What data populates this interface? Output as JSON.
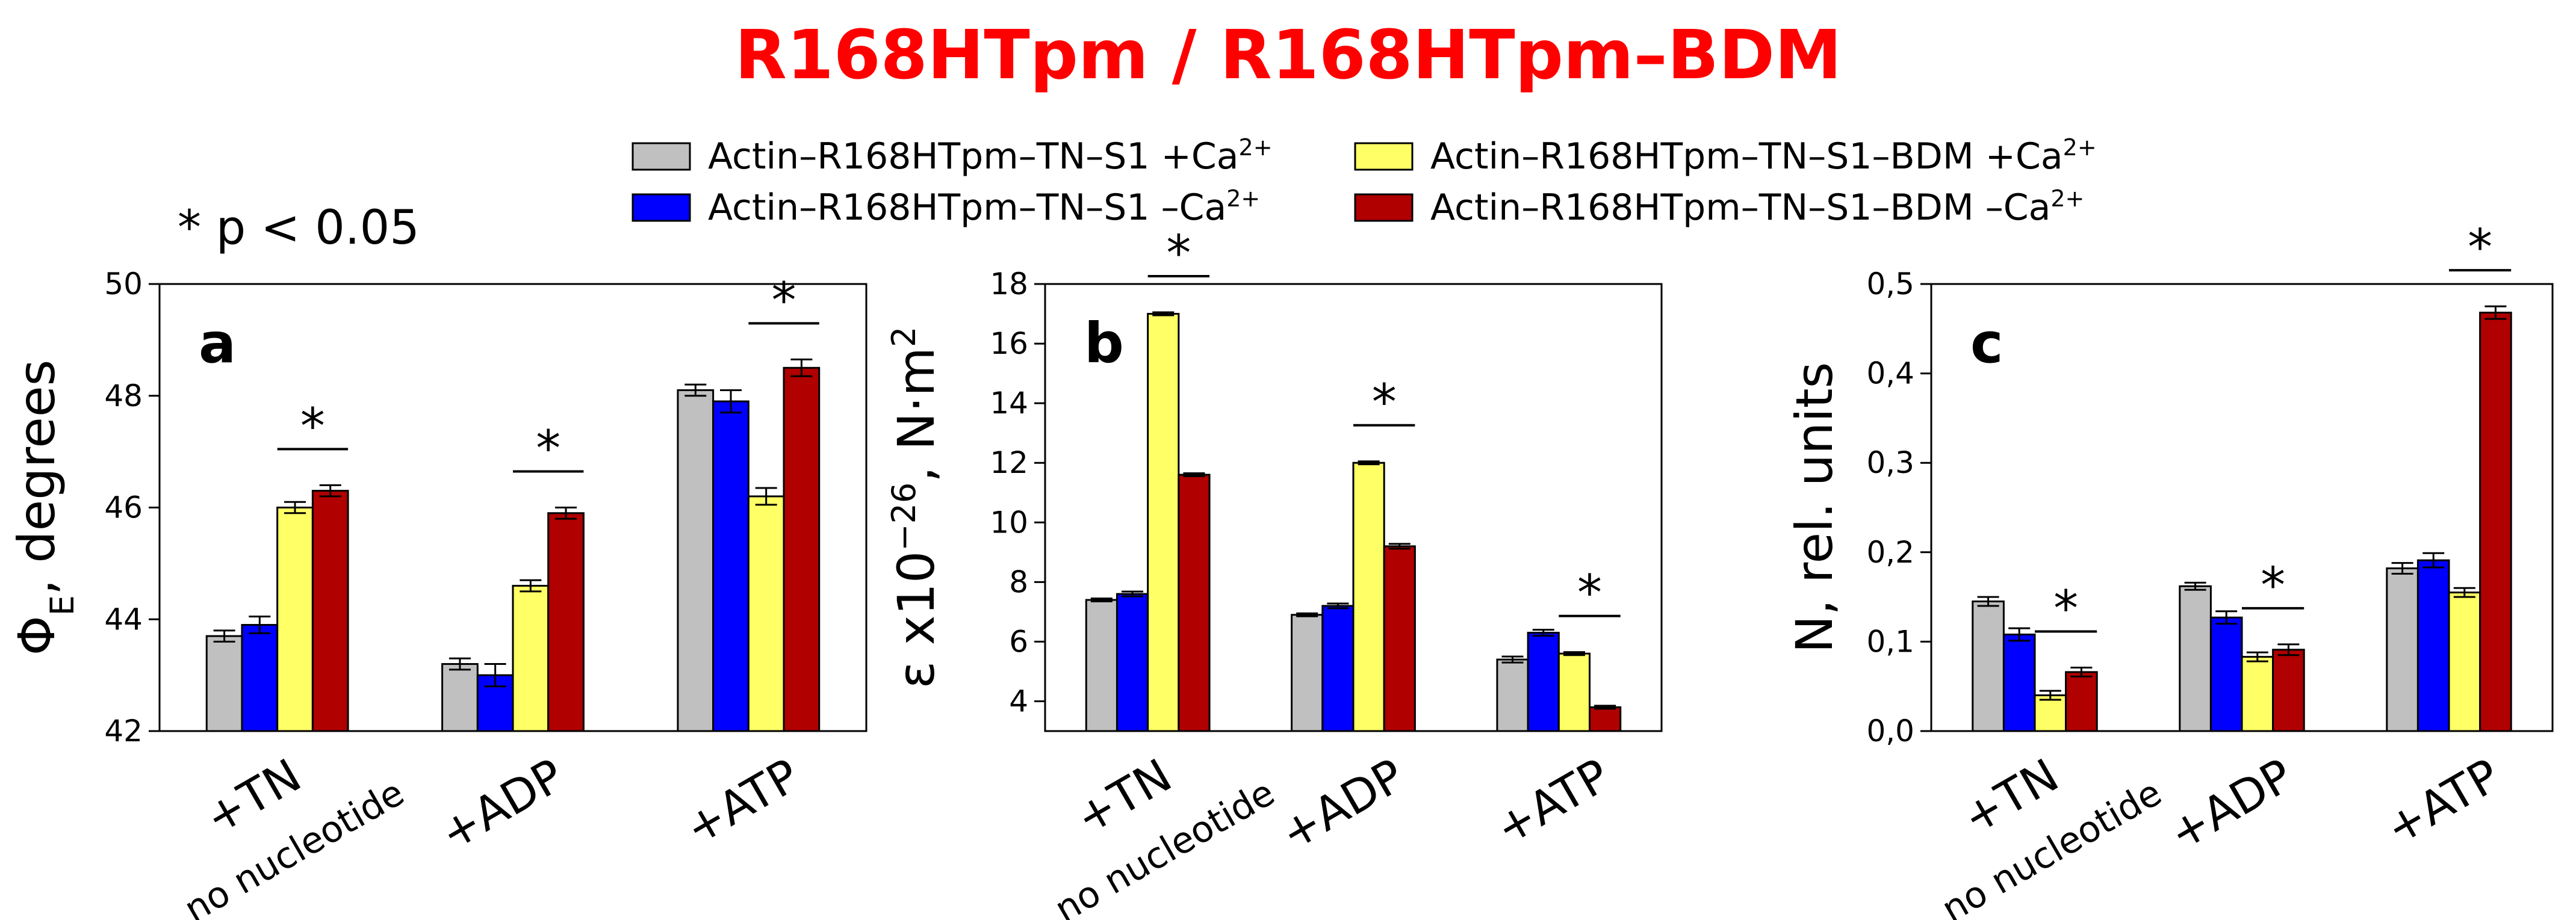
{
  "title": "R168HTpm / R168HTpm–BDM",
  "note": "* p < 0.05",
  "legend": [
    {
      "text": "Actin–R168HTpm–TN–S1 +Ca",
      "sup": "2+",
      "color": "#c0c0c0"
    },
    {
      "text": "Actin–R168HTpm–TN–S1 –Ca",
      "sup": "2+",
      "color": "#0000ff"
    },
    {
      "text": "Actin–R168HTpm–TN–S1–BDM +Ca",
      "sup": "2+",
      "color": "#ffff66"
    },
    {
      "text": "Actin–R168HTpm–TN–S1–BDM –Ca",
      "sup": "2+",
      "color": "#b00000"
    }
  ],
  "chart_data": [
    {
      "type": "bar",
      "panel": "a",
      "ylabel": [
        {
          "text": "Φ"
        },
        {
          "text": "E",
          "shift": "sub"
        },
        {
          "text": ", degrees"
        }
      ],
      "categories": [
        [
          "+TN",
          "no nucleotide"
        ],
        [
          "+ADP"
        ],
        [
          "+ATP"
        ]
      ],
      "series": [
        {
          "values": [
            43.7,
            43.2,
            48.1
          ],
          "errors": [
            0.1,
            0.1,
            0.1
          ]
        },
        {
          "values": [
            43.9,
            43.0,
            47.9
          ],
          "errors": [
            0.15,
            0.2,
            0.2
          ]
        },
        {
          "values": [
            46.0,
            44.6,
            46.2
          ],
          "errors": [
            0.1,
            0.1,
            0.15
          ]
        },
        {
          "values": [
            46.3,
            45.9,
            48.5
          ],
          "errors": [
            0.1,
            0.1,
            0.15
          ]
        }
      ],
      "ylim": [
        42,
        50
      ],
      "yticks": [
        42,
        44,
        46,
        48,
        50
      ],
      "significance": [
        {
          "category": 0,
          "series": [
            2,
            3
          ],
          "label": "*"
        },
        {
          "category": 1,
          "series": [
            2,
            3
          ],
          "label": "*"
        },
        {
          "category": 2,
          "series": [
            2,
            3
          ],
          "label": "*"
        }
      ]
    },
    {
      "type": "bar",
      "panel": "b",
      "ylabel": [
        {
          "text": "ε x10"
        },
        {
          "text": "−26",
          "shift": "super"
        },
        {
          "text": ", N·m"
        },
        {
          "text": "2",
          "shift": "super"
        }
      ],
      "categories": [
        [
          "+TN",
          "no nucleotide"
        ],
        [
          "+ADP"
        ],
        [
          "+ATP"
        ]
      ],
      "series": [
        {
          "values": [
            7.4,
            6.9,
            5.4
          ],
          "errors": [
            0.05,
            0.05,
            0.1
          ]
        },
        {
          "values": [
            7.6,
            7.2,
            6.3
          ],
          "errors": [
            0.08,
            0.08,
            0.1
          ]
        },
        {
          "values": [
            17.0,
            12.0,
            5.6
          ],
          "errors": [
            0.05,
            0.05,
            0.05
          ]
        },
        {
          "values": [
            11.6,
            9.2,
            3.8
          ],
          "errors": [
            0.05,
            0.08,
            0.05
          ]
        }
      ],
      "ylim": [
        3,
        18
      ],
      "yticks": [
        4,
        6,
        8,
        10,
        12,
        14,
        16,
        18
      ],
      "significance": [
        {
          "category": 0,
          "series": [
            2,
            3
          ],
          "label": "*"
        },
        {
          "category": 1,
          "series": [
            2,
            3
          ],
          "label": "*"
        },
        {
          "category": 2,
          "series": [
            2,
            3
          ],
          "label": "*"
        }
      ]
    },
    {
      "type": "bar",
      "panel": "c",
      "ylabel": [
        {
          "text": "N, rel. units"
        }
      ],
      "categories": [
        [
          "+TN",
          "no nucleotide"
        ],
        [
          "+ADP"
        ],
        [
          "+ATP"
        ]
      ],
      "series": [
        {
          "values": [
            0.145,
            0.162,
            0.182
          ],
          "errors": [
            0.005,
            0.004,
            0.006
          ]
        },
        {
          "values": [
            0.108,
            0.127,
            0.191
          ],
          "errors": [
            0.007,
            0.007,
            0.008
          ]
        },
        {
          "values": [
            0.04,
            0.083,
            0.155
          ],
          "errors": [
            0.005,
            0.005,
            0.005
          ]
        },
        {
          "values": [
            0.066,
            0.091,
            0.468
          ],
          "errors": [
            0.005,
            0.006,
            0.007
          ]
        }
      ],
      "ylim": [
        0,
        0.5
      ],
      "yticks": [
        {
          "value": 0,
          "label": "0,0"
        },
        {
          "value": 0.1,
          "label": "0,1"
        },
        {
          "value": 0.2,
          "label": "0,2"
        },
        {
          "value": 0.3,
          "label": "0,3"
        },
        {
          "value": 0.4,
          "label": "0,4"
        },
        {
          "value": 0.5,
          "label": "0,5"
        }
      ],
      "significance": [
        {
          "category": 0,
          "series": [
            2,
            3
          ],
          "label": "*"
        },
        {
          "category": 1,
          "series": [
            2,
            3
          ],
          "label": "*"
        },
        {
          "category": 2,
          "series": [
            2,
            3
          ],
          "label": "*"
        }
      ]
    }
  ]
}
